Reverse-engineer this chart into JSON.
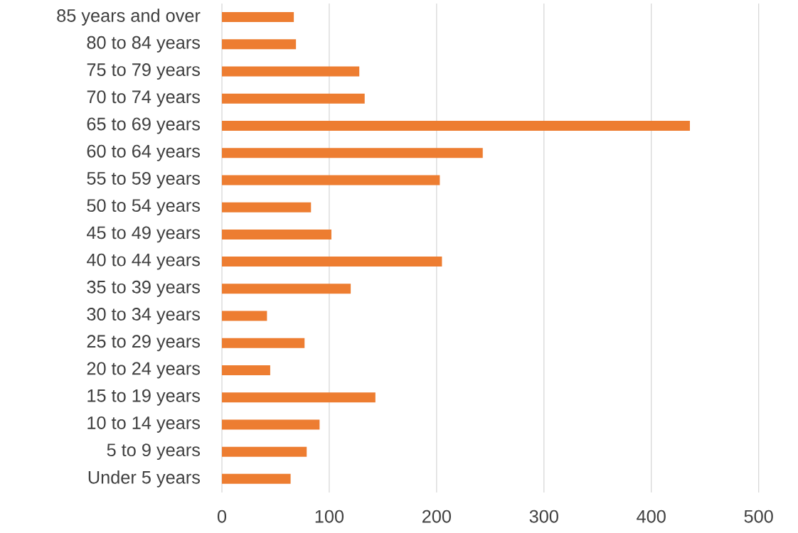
{
  "chart_data": {
    "type": "bar",
    "orientation": "horizontal",
    "categories": [
      "85 years and over",
      "80 to 84 years",
      "75 to 79 years",
      "70 to 74 years",
      "65 to 69 years",
      "60 to 64 years",
      "55 to 59 years",
      "50 to 54 years",
      "45 to 49 years",
      "40 to 44 years",
      "35 to 39 years",
      "30 to 34 years",
      "25 to 29 years",
      "20 to 24 years",
      "15 to 19 years",
      "10 to 14 years",
      "5 to 9 years",
      "Under 5 years"
    ],
    "values": [
      67,
      69,
      128,
      133,
      436,
      243,
      203,
      83,
      102,
      205,
      120,
      42,
      77,
      45,
      143,
      91,
      79,
      64
    ],
    "color": "#ed7d31",
    "xlim": [
      0,
      500
    ],
    "xticks": [
      0,
      100,
      200,
      300,
      400,
      500
    ],
    "grid": "x"
  }
}
